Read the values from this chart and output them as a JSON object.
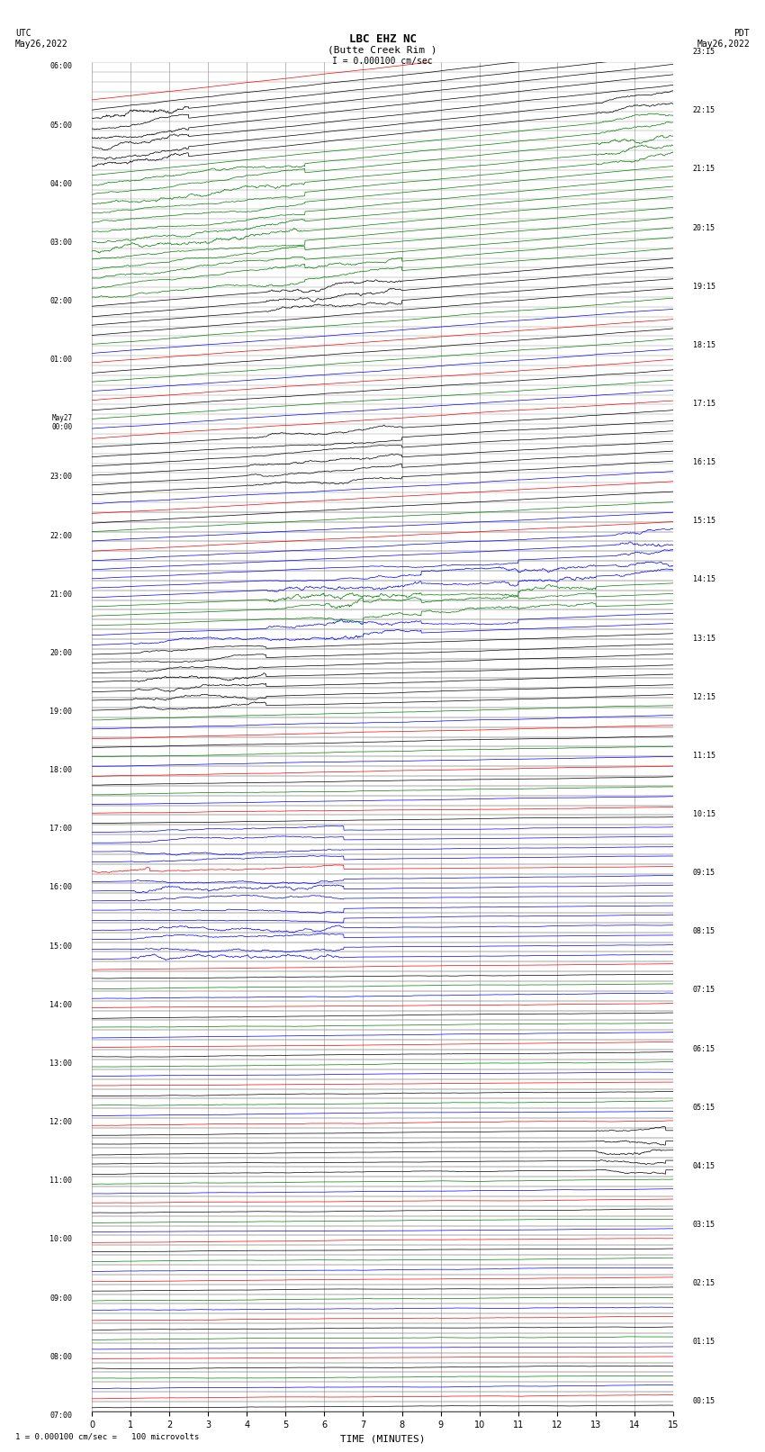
{
  "title_line1": "LBC EHZ NC",
  "title_line2": "(Butte Creek Rim )",
  "scale_label": "I = 0.000100 cm/sec",
  "left_date": "UTC\nMay26,2022",
  "right_date": "PDT\nMay26,2022",
  "bottom_label": "TIME (MINUTES)",
  "bottom_note": "1 = 0.000100 cm/sec =   100 microvolts",
  "xlim": [
    0,
    15
  ],
  "xticks": [
    0,
    1,
    2,
    3,
    4,
    5,
    6,
    7,
    8,
    9,
    10,
    11,
    12,
    13,
    14,
    15
  ],
  "bg_color": "#ffffff",
  "grid_color": "#888888",
  "num_rows": 92,
  "colors_cycle": [
    "black",
    "red",
    "blue",
    "green"
  ],
  "base_utc_hour": 7,
  "base_utc_min": 0,
  "base_pdt_hour": 0,
  "base_pdt_min": 15,
  "minutes_per_row": 10
}
